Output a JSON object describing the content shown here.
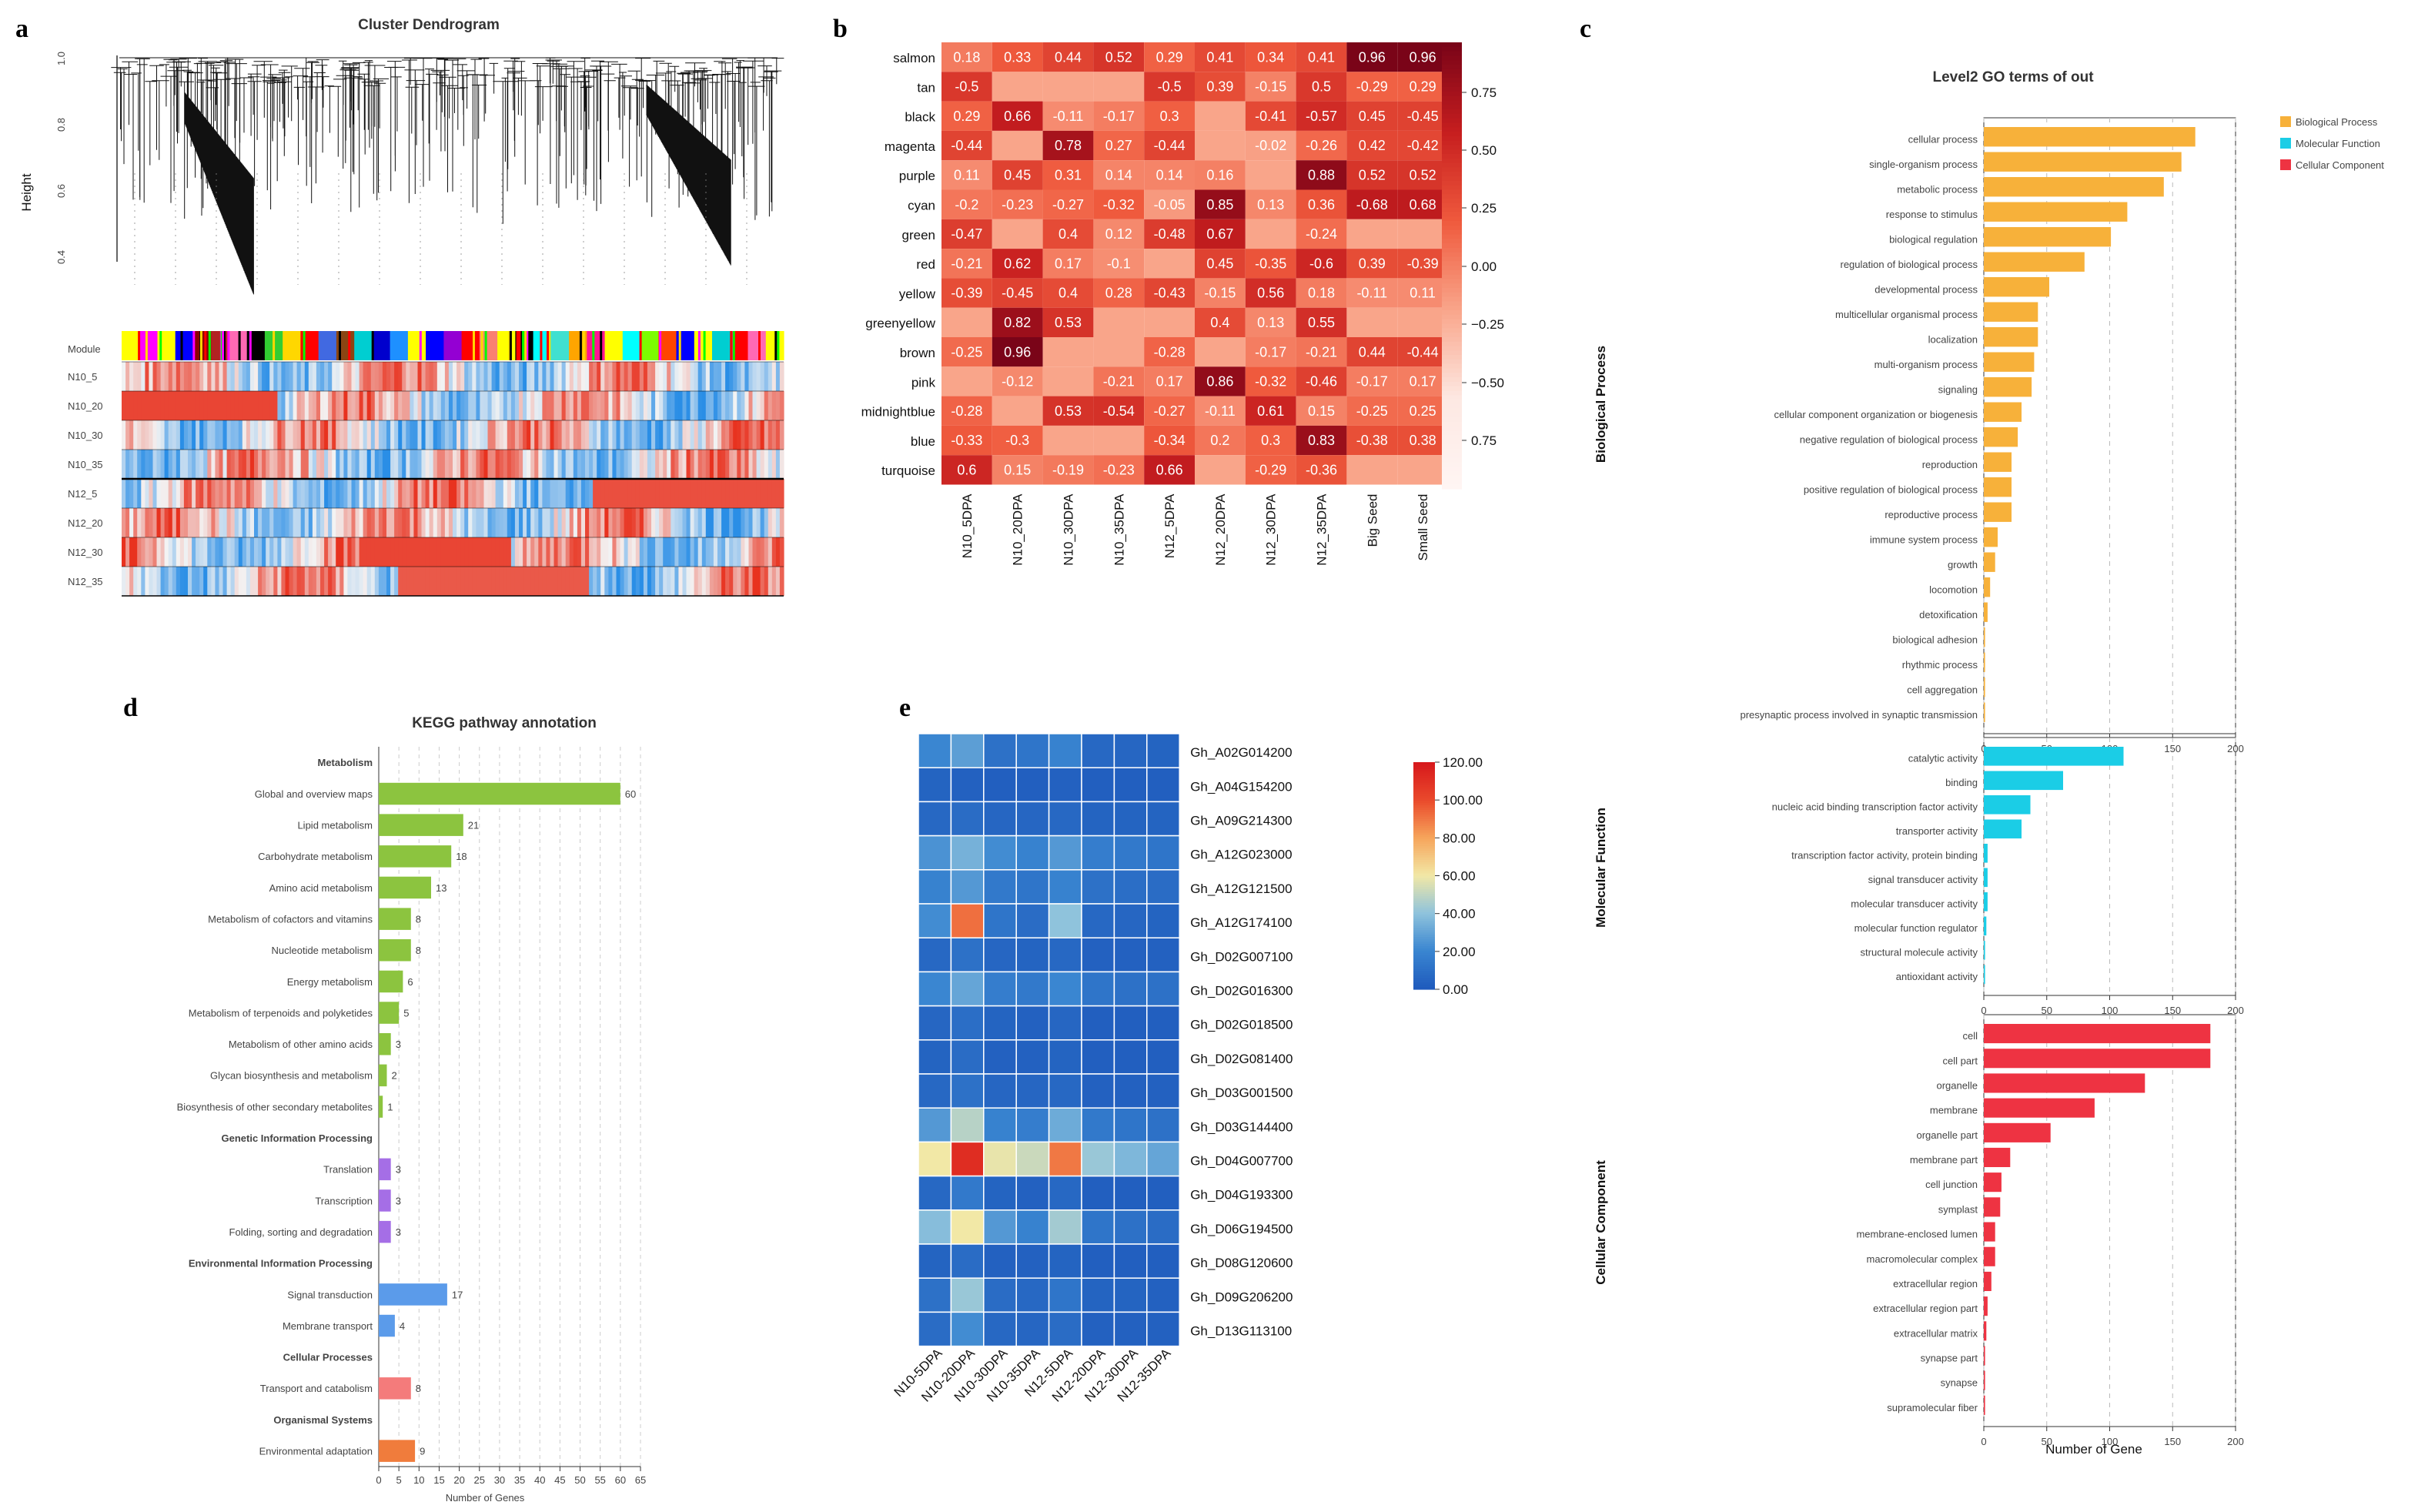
{
  "panel_letters": [
    "a",
    "b",
    "c",
    "d",
    "e"
  ],
  "chart_data": [
    {
      "panel": "a",
      "type": "dendrogram",
      "title": "Cluster Dendrogram",
      "ylabel": "Height",
      "yticks": [
        "1.0",
        "0.8",
        "0.6",
        "0.4"
      ],
      "module_row_label": "Module",
      "module_colors": [
        "#ffff00",
        "#ff00ff",
        "#ffff00",
        "#0000ff",
        "#8b0000",
        "#b22222",
        "#ff69b4",
        "#000000",
        "#32cd32",
        "#ffd700",
        "#ff0000",
        "#4169e1",
        "#8b4513",
        "#00ced1",
        "#0000cd",
        "#1e90ff",
        "#ffff00",
        "#0000ff",
        "#9400d3",
        "#ff0000",
        "#fa8072",
        "#ffff00",
        "#000000",
        "#00ffff",
        "#40e0d0",
        "#ffa500",
        "#ff1493",
        "#ffff00",
        "#00ffff",
        "#7cfc00",
        "#ff4500",
        "#0000ff",
        "#ffff00",
        "#00ced1",
        "#ff0000",
        "#ff69b4",
        "#ffff00"
      ],
      "trait_rows": [
        "N10_5",
        "N10_20",
        "N10_30",
        "N10_35",
        "N12_5",
        "N12_20",
        "N12_30",
        "N12_35"
      ]
    },
    {
      "panel": "b",
      "type": "heatmap",
      "rows": [
        "salmon",
        "tan",
        "black",
        "magenta",
        "purple",
        "cyan",
        "green",
        "red",
        "yellow",
        "greenyellow",
        "brown",
        "pink",
        "midnightblue",
        "blue",
        "turquoise"
      ],
      "columns": [
        "N10_5DPA",
        "N10_20DPA",
        "N10_30DPA",
        "N10_35DPA",
        "N12_5DPA",
        "N12_20DPA",
        "N12_30DPA",
        "N12_35DPA",
        "Big Seed",
        "Small Seed"
      ],
      "values": [
        [
          0.18,
          0.33,
          0.44,
          0.52,
          0.29,
          0.41,
          0.34,
          0.41,
          0.96,
          0.96
        ],
        [
          -0.5,
          null,
          null,
          null,
          -0.5,
          0.39,
          -0.15,
          0.5,
          -0.29,
          0.29
        ],
        [
          0.29,
          0.66,
          -0.11,
          -0.17,
          0.3,
          null,
          -0.41,
          -0.57,
          0.45,
          -0.45
        ],
        [
          -0.44,
          null,
          0.78,
          0.27,
          -0.44,
          null,
          -0.02,
          -0.26,
          0.42,
          -0.42
        ],
        [
          0.11,
          0.45,
          0.31,
          0.14,
          0.14,
          0.16,
          null,
          0.88,
          0.52,
          0.52
        ],
        [
          -0.2,
          -0.23,
          -0.27,
          -0.32,
          -0.05,
          0.85,
          0.13,
          0.36,
          -0.68,
          0.68
        ],
        [
          -0.47,
          null,
          0.4,
          0.12,
          -0.48,
          0.67,
          null,
          -0.24,
          null,
          null
        ],
        [
          -0.21,
          0.62,
          0.17,
          -0.1,
          null,
          0.45,
          -0.35,
          -0.6,
          0.39,
          -0.39
        ],
        [
          -0.39,
          -0.45,
          0.4,
          0.28,
          -0.43,
          -0.15,
          0.56,
          0.18,
          -0.11,
          0.11
        ],
        [
          null,
          0.82,
          0.53,
          null,
          null,
          0.4,
          0.13,
          0.55,
          null,
          null
        ],
        [
          -0.25,
          0.96,
          null,
          null,
          -0.28,
          null,
          -0.17,
          -0.21,
          0.44,
          -0.44
        ],
        [
          null,
          -0.12,
          null,
          -0.21,
          0.17,
          0.86,
          -0.32,
          -0.46,
          -0.17,
          0.17
        ],
        [
          -0.28,
          null,
          0.53,
          -0.54,
          -0.27,
          -0.11,
          0.61,
          0.15,
          -0.25,
          0.25
        ],
        [
          -0.33,
          -0.3,
          null,
          null,
          -0.34,
          0.2,
          0.3,
          0.83,
          -0.38,
          0.38
        ],
        [
          0.6,
          0.15,
          -0.19,
          -0.23,
          0.66,
          null,
          -0.29,
          -0.36,
          null,
          null
        ]
      ],
      "colorbar_ticks": [
        "0.75",
        "0.50",
        "0.25",
        "0.00",
        "−0.25",
        "−0.50",
        "0.75"
      ]
    },
    {
      "panel": "c",
      "type": "bar",
      "orientation": "horizontal",
      "title": "Level2 GO terms of out",
      "xlabel": "Number of Gene",
      "xticks": [
        "0",
        "50",
        "100",
        "150",
        "200"
      ],
      "xlim": [
        0,
        200
      ],
      "legend": [
        {
          "name": "Biological Process",
          "color": "#f7b13a"
        },
        {
          "name": "Molecular Function",
          "color": "#1bcde6"
        },
        {
          "name": "Cellular Component",
          "color": "#ee3342"
        }
      ],
      "series": [
        {
          "name": "Biological Process",
          "categories": [
            "cellular process",
            "single-organism process",
            "metabolic process",
            "response to stimulus",
            "biological regulation",
            "regulation of biological process",
            "developmental process",
            "multicellular organismal process",
            "localization",
            "multi-organism process",
            "signaling",
            "cellular component organization or biogenesis",
            "negative regulation of biological process",
            "reproduction",
            "positive regulation of biological process",
            "reproductive process",
            "immune system process",
            "growth",
            "locomotion",
            "detoxification",
            "biological adhesion",
            "rhythmic process",
            "cell aggregation",
            "presynaptic process involved in synaptic transmission"
          ],
          "values": [
            168,
            157,
            143,
            114,
            101,
            80,
            52,
            43,
            43,
            40,
            38,
            30,
            27,
            22,
            22,
            22,
            11,
            9,
            5,
            3,
            1,
            1,
            1,
            1
          ]
        },
        {
          "name": "Molecular Function",
          "categories": [
            "catalytic activity",
            "binding",
            "nucleic acid binding transcription factor activity",
            "transporter activity",
            "transcription factor activity, protein binding",
            "signal transducer activity",
            "molecular transducer activity",
            "molecular function regulator",
            "structural molecule activity",
            "antioxidant activity"
          ],
          "values": [
            111,
            63,
            37,
            30,
            3,
            3,
            3,
            2,
            1,
            1
          ]
        },
        {
          "name": "Cellular Component",
          "categories": [
            "cell",
            "cell part",
            "organelle",
            "membrane",
            "organelle part",
            "membrane part",
            "cell junction",
            "symplast",
            "membrane-enclosed lumen",
            "macromolecular complex",
            "extracellular region",
            "extracellular region part",
            "extracellular matrix",
            "synapse part",
            "synapse",
            "supramolecular fiber"
          ],
          "values": [
            180,
            180,
            128,
            88,
            53,
            21,
            14,
            13,
            9,
            9,
            6,
            3,
            2,
            1,
            1,
            1
          ]
        }
      ],
      "section_labels": [
        "Biological Process",
        "Molecular Function",
        "Cellular Component"
      ]
    },
    {
      "panel": "d",
      "type": "bar",
      "orientation": "horizontal",
      "title": "KEGG pathway annotation",
      "xlabel": "Number of Genes",
      "xticks": [
        "0",
        "5",
        "10",
        "15",
        "20",
        "25",
        "30",
        "35",
        "40",
        "45",
        "50",
        "55",
        "60",
        "65"
      ],
      "xlim": [
        0,
        65
      ],
      "groups": [
        {
          "name": "Metabolism",
          "color": "#8cc43f",
          "items": [
            {
              "label": "Global and overview maps",
              "value": 60
            },
            {
              "label": "Lipid metabolism",
              "value": 21
            },
            {
              "label": "Carbohydrate metabolism",
              "value": 18
            },
            {
              "label": "Amino acid metabolism",
              "value": 13
            },
            {
              "label": "Metabolism of cofactors and vitamins",
              "value": 8
            },
            {
              "label": "Nucleotide metabolism",
              "value": 8
            },
            {
              "label": "Energy metabolism",
              "value": 6
            },
            {
              "label": "Metabolism of terpenoids and polyketides",
              "value": 5
            },
            {
              "label": "Metabolism of other amino acids",
              "value": 3
            },
            {
              "label": "Glycan biosynthesis and metabolism",
              "value": 2
            },
            {
              "label": "Biosynthesis of other secondary metabolites",
              "value": 1
            }
          ]
        },
        {
          "name": "Genetic Information Processing",
          "color": "#a56ee6",
          "items": [
            {
              "label": "Translation",
              "value": 3
            },
            {
              "label": "Transcription",
              "value": 3
            },
            {
              "label": "Folding, sorting and degradation",
              "value": 3
            }
          ]
        },
        {
          "name": "Environmental Information Processing",
          "color": "#5b9bea",
          "items": [
            {
              "label": "Signal transduction",
              "value": 17
            },
            {
              "label": "Membrane transport",
              "value": 4
            }
          ]
        },
        {
          "name": "Cellular Processes",
          "color": "#f47b7b",
          "items": [
            {
              "label": "Transport and catabolism",
              "value": 8
            }
          ]
        },
        {
          "name": "Organismal Systems",
          "color": "#f07c3c",
          "items": [
            {
              "label": "Environmental adaptation",
              "value": 9
            }
          ]
        }
      ]
    },
    {
      "panel": "e",
      "type": "heatmap",
      "rows": [
        "Gh_A02G014200",
        "Gh_A04G154200",
        "Gh_A09G214300",
        "Gh_A12G023000",
        "Gh_A12G121500",
        "Gh_A12G174100",
        "Gh_D02G007100",
        "Gh_D02G016300",
        "Gh_D02G018500",
        "Gh_D02G081400",
        "Gh_D03G001500",
        "Gh_D03G144400",
        "Gh_D04G007700",
        "Gh_D04G193300",
        "Gh_D06G194500",
        "Gh_D08G120600",
        "Gh_D09G206200",
        "Gh_D13G113100"
      ],
      "columns": [
        "N10-5DPA",
        "N10-20DPA",
        "N10-30DPA",
        "N10-35DPA",
        "N12-5DPA",
        "N12-20DPA",
        "N12-30DPA",
        "N12-35DPA"
      ],
      "values": [
        [
          20,
          28,
          10,
          12,
          18,
          6,
          5,
          4
        ],
        [
          4,
          3,
          2,
          2,
          3,
          2,
          2,
          2
        ],
        [
          6,
          8,
          5,
          5,
          6,
          4,
          4,
          4
        ],
        [
          24,
          34,
          22,
          18,
          26,
          16,
          14,
          12
        ],
        [
          18,
          26,
          14,
          12,
          18,
          10,
          9,
          8
        ],
        [
          22,
          92,
          12,
          8,
          40,
          6,
          5,
          4
        ],
        [
          6,
          10,
          5,
          4,
          6,
          3,
          3,
          3
        ],
        [
          20,
          30,
          16,
          14,
          20,
          12,
          10,
          10
        ],
        [
          5,
          9,
          4,
          3,
          5,
          2,
          2,
          2
        ],
        [
          4,
          8,
          3,
          3,
          4,
          2,
          2,
          2
        ],
        [
          6,
          10,
          5,
          5,
          6,
          3,
          3,
          3
        ],
        [
          26,
          48,
          18,
          16,
          32,
          14,
          12,
          10
        ],
        [
          60,
          112,
          58,
          52,
          90,
          42,
          36,
          30
        ],
        [
          6,
          14,
          4,
          3,
          6,
          2,
          2,
          2
        ],
        [
          38,
          60,
          26,
          18,
          44,
          12,
          10,
          8
        ],
        [
          4,
          8,
          3,
          3,
          4,
          2,
          2,
          2
        ],
        [
          10,
          42,
          8,
          6,
          12,
          4,
          4,
          3
        ],
        [
          8,
          22,
          6,
          5,
          8,
          3,
          3,
          3
        ]
      ],
      "colorbar_ticks": [
        "120.00",
        "100.00",
        "80.00",
        "60.00",
        "40.00",
        "20.00",
        "0.00"
      ],
      "vmax": 120
    }
  ]
}
